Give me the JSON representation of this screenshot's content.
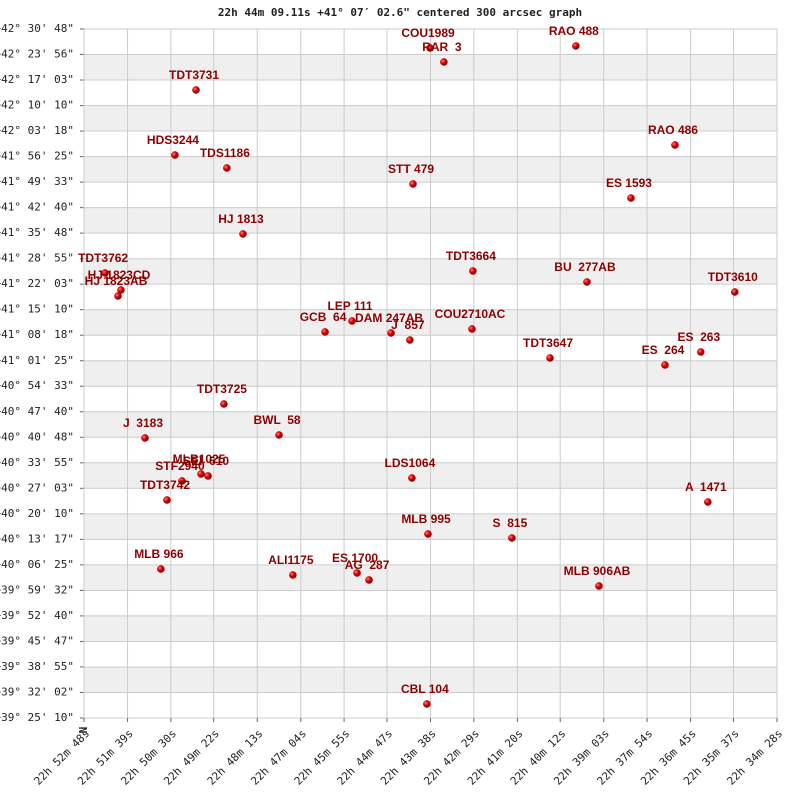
{
  "chart_data": {
    "type": "scatter",
    "title": "22h 44m 09.11s +41° 07′ 02.6\" centered 300 arcsec graph",
    "compass": "N",
    "color": "#cc0000",
    "label_color": "#8b0000",
    "grid": true,
    "banded": true,
    "labels": [
      "COU1989",
      "RAR  3",
      "RAO 488",
      "TDT3731",
      "RAO 486",
      "HDS3244",
      "TDS1186",
      "STT 479",
      "ES 1593",
      "HJ 1813",
      "TDT3762",
      "HJ 1823CD",
      "HJ 1823AB",
      "TDT3664",
      "BU  277AB",
      "TDT3610",
      "LEP 111",
      "DAM 247AB",
      "J  857",
      "GCB  64",
      "COU2710AC",
      "TDT3647",
      "ES  263",
      "ES  264",
      "TDT3725",
      "BWL  58",
      "J  3183",
      "LDS1064",
      "STF2940",
      "MLB1025",
      "SEI  610",
      "TDT3742",
      "MLB 995",
      "S  815",
      "A  1471",
      "MLB 966",
      "ALI1175",
      "ES 1700",
      "AG  287",
      "MLB 906AB",
      "CBL 104"
    ],
    "x": [
      22.7274,
      22.7213,
      22.6631,
      22.8306,
      22.6194,
      22.8399,
      22.817,
      22.7349,
      22.6388,
      22.8099,
      22.8707,
      22.8637,
      22.865,
      22.7085,
      22.6582,
      22.593,
      22.7618,
      22.7446,
      22.7363,
      22.7737,
      22.7089,
      22.6745,
      22.608,
      22.6238,
      22.8183,
      22.794,
      22.8531,
      22.7354,
      22.8368,
      22.8284,
      22.8253,
      22.8434,
      22.7283,
      22.6913,
      22.6049,
      22.8461,
      22.7879,
      22.7596,
      22.7543,
      22.6529,
      22.7288
    ],
    "values": [
      42.428,
      42.3651,
      42.437,
      42.2394,
      41.9924,
      41.9475,
      41.8891,
      41.8173,
      41.7544,
      41.5928,
      41.4177,
      41.3413,
      41.3144,
      41.4266,
      41.3772,
      41.3323,
      41.2021,
      41.1482,
      41.1168,
      41.1527,
      41.1662,
      41.036,
      41.0629,
      41.0045,
      40.8294,
      40.6902,
      40.6767,
      40.4971,
      40.4837,
      40.5151,
      40.5061,
      40.3983,
      40.2457,
      40.2277,
      40.3894,
      40.0885,
      40.0616,
      40.0706,
      40.0391,
      40.0122,
      39.4823
    ],
    "xlim": [
      22.88,
      22.5744
    ],
    "ylim": [
      39.4194,
      42.5133
    ],
    "xticks": [
      {
        "value": 22.88,
        "label": "22h 52m 48s"
      },
      {
        "value": 22.8608,
        "label": "22h 51m 39s"
      },
      {
        "value": 22.8417,
        "label": "22h 50m 30s"
      },
      {
        "value": 22.8228,
        "label": "22h 49m 22s"
      },
      {
        "value": 22.8036,
        "label": "22h 48m 13s"
      },
      {
        "value": 22.7844,
        "label": "22h 47m 04s"
      },
      {
        "value": 22.7653,
        "label": "22h 45m 55s"
      },
      {
        "value": 22.7464,
        "label": "22h 44m 47s"
      },
      {
        "value": 22.7272,
        "label": "22h 43m 38s"
      },
      {
        "value": 22.7081,
        "label": "22h 42m 29s"
      },
      {
        "value": 22.6889,
        "label": "22h 41m 20s"
      },
      {
        "value": 22.67,
        "label": "22h 40m 12s"
      },
      {
        "value": 22.6508,
        "label": "22h 39m 03s"
      },
      {
        "value": 22.6317,
        "label": "22h 37m 54s"
      },
      {
        "value": 22.6125,
        "label": "22h 36m 45s"
      },
      {
        "value": 22.5936,
        "label": "22h 35m 37s"
      },
      {
        "value": 22.5744,
        "label": "22h 34m 28s"
      }
    ],
    "yticks": [
      {
        "value": 42.5133,
        "label": "+42° 30' 48\""
      },
      {
        "value": 42.3989,
        "label": "+42° 23' 56\""
      },
      {
        "value": 42.2842,
        "label": "+42° 17' 03\""
      },
      {
        "value": 42.1694,
        "label": "+42° 10' 10\""
      },
      {
        "value": 42.055,
        "label": "+42° 03' 18\""
      },
      {
        "value": 41.9403,
        "label": "+41° 56' 25\""
      },
      {
        "value": 41.8258,
        "label": "+41° 49' 33\""
      },
      {
        "value": 41.7111,
        "label": "+41° 42' 40\""
      },
      {
        "value": 41.5967,
        "label": "+41° 35' 48\""
      },
      {
        "value": 41.4819,
        "label": "+41° 28' 55\""
      },
      {
        "value": 41.3675,
        "label": "+41° 22' 03\""
      },
      {
        "value": 41.2528,
        "label": "+41° 15' 10\""
      },
      {
        "value": 41.1383,
        "label": "+41° 08' 18\""
      },
      {
        "value": 41.0236,
        "label": "+41° 01' 25\""
      },
      {
        "value": 40.9092,
        "label": "+40° 54' 33\""
      },
      {
        "value": 40.7944,
        "label": "+40° 47' 40\""
      },
      {
        "value": 40.68,
        "label": "+40° 40' 48\""
      },
      {
        "value": 40.5653,
        "label": "+40° 33' 55\""
      },
      {
        "value": 40.4508,
        "label": "+40° 27' 03\""
      },
      {
        "value": 40.3361,
        "label": "+40° 20' 10\""
      },
      {
        "value": 40.2214,
        "label": "+40° 13' 17\""
      },
      {
        "value": 40.1069,
        "label": "+40° 06' 25\""
      },
      {
        "value": 39.9922,
        "label": "+39° 59' 32\""
      },
      {
        "value": 39.8778,
        "label": "+39° 52' 40\""
      },
      {
        "value": 39.7631,
        "label": "+39° 45' 47\""
      },
      {
        "value": 39.6486,
        "label": "+39° 38' 55\""
      },
      {
        "value": 39.5339,
        "label": "+39° 32' 02\""
      },
      {
        "value": 39.4194,
        "label": "+39° 25' 10\""
      }
    ]
  }
}
